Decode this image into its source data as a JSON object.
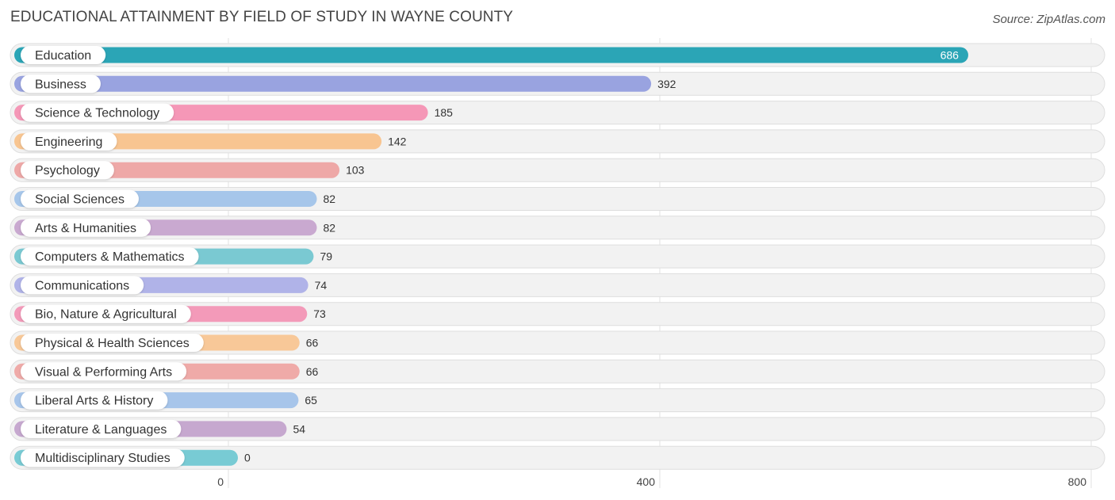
{
  "chart_data": {
    "type": "bar",
    "orientation": "horizontal",
    "title": "EDUCATIONAL ATTAINMENT BY FIELD OF STUDY IN WAYNE COUNTY",
    "source": "Source: ZipAtlas.com",
    "categories": [
      "Education",
      "Business",
      "Science & Technology",
      "Engineering",
      "Psychology",
      "Social Sciences",
      "Arts & Humanities",
      "Computers & Mathematics",
      "Communications",
      "Bio, Nature & Agricultural",
      "Physical & Health Sciences",
      "Visual & Performing Arts",
      "Liberal Arts & History",
      "Literature & Languages",
      "Multidisciplinary Studies"
    ],
    "values": [
      686,
      392,
      185,
      142,
      103,
      82,
      82,
      79,
      74,
      73,
      66,
      66,
      65,
      54,
      0
    ],
    "colors": [
      "#2ba5b6",
      "#99a3e0",
      "#f597b7",
      "#f8c591",
      "#eea8a7",
      "#a6c6ea",
      "#c9a9d0",
      "#7ac9d2",
      "#b0b3e8",
      "#f39ab9",
      "#f8c898",
      "#efaaa8",
      "#a7c5ea",
      "#c6a8cf",
      "#78cbd4"
    ],
    "xlim": [
      0,
      800
    ],
    "xticks": [
      "0",
      "400",
      "800"
    ],
    "grid": true,
    "legend": "none"
  }
}
